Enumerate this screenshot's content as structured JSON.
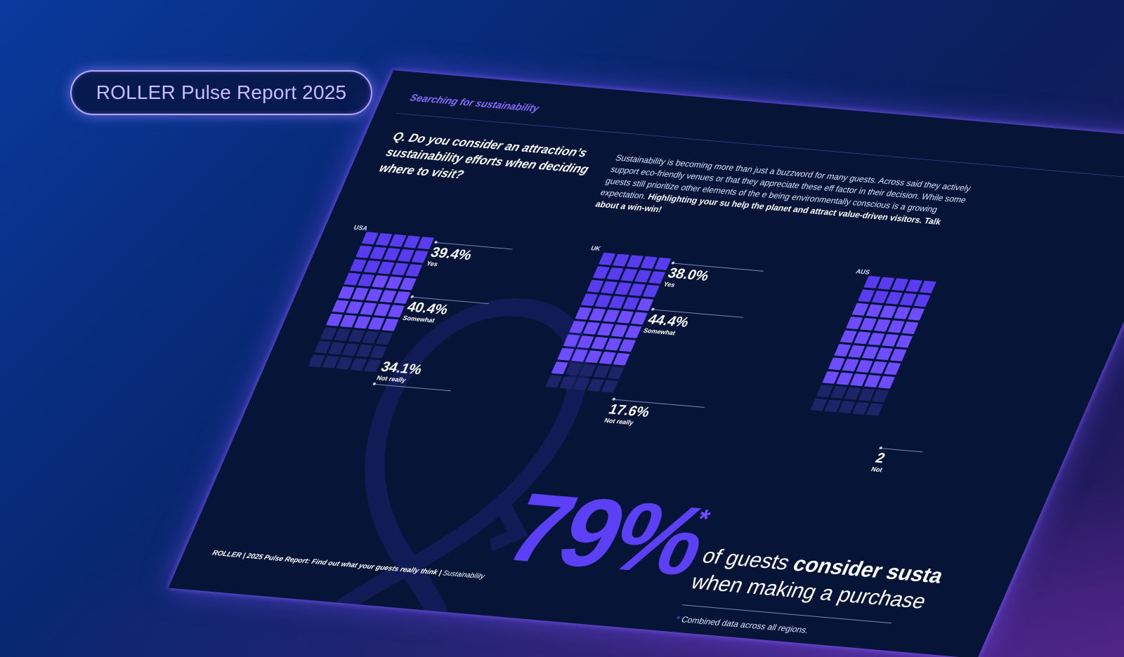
{
  "badge": {
    "label": "ROLLER Pulse Report 2025"
  },
  "page": {
    "section": "Searching for sustainability",
    "question": "Q. Do you consider an attraction’s sustainability efforts when deciding where to visit?",
    "intro_regular": "Sustainability is becoming more than just a buzzword for many guests. Across said they actively support eco-friendly venues or that they appreciate these eff factor in their decision. While some guests still prioritize other elements of the e being environmentally conscious is a growing expectation. ",
    "intro_bold": "Highlighting your su help the planet and attract value-driven visitors. Talk about a win-win!",
    "big_stat": "79%",
    "big_asterisk": "*",
    "stat_text_1": "of guests ",
    "stat_text_bold": "consider susta",
    "stat_text_2": "when making a purchase",
    "footnote_star": "*",
    "footnote": "Combined data across all regions.",
    "footer_main": "ROLLER | 2025 Pulse Report: Find out what your guests really think | ",
    "footer_section": "Sustainability"
  },
  "chart_data": {
    "type": "waffle",
    "categories": [
      "Yes",
      "Somewhat",
      "Not really"
    ],
    "regions": [
      {
        "name": "USA",
        "values": [
          39.4,
          40.4,
          34.1
        ],
        "labels": [
          "39.4%",
          "40.4%",
          "34.1%"
        ]
      },
      {
        "name": "UK",
        "values": [
          38.0,
          44.4,
          17.6
        ],
        "labels": [
          "38.0%",
          "44.4%",
          "17.6%"
        ]
      },
      {
        "name": "AUS",
        "values": [
          null,
          null,
          null
        ],
        "labels": [
          "",
          "",
          "2"
        ]
      }
    ],
    "label_texts": {
      "yes": "Yes",
      "somewhat": "Somewhat",
      "not": "Not really",
      "not_cut": "Not"
    },
    "colors": {
      "yes": "#5a3cf0",
      "somewhat": "#6d4dff",
      "not_really": "#1e2468"
    }
  }
}
